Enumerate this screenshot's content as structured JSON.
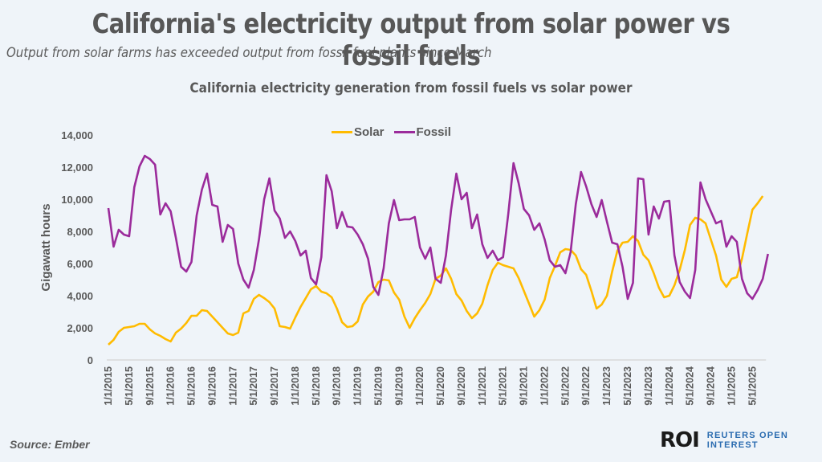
{
  "header": {
    "title": "California's electricity output from solar power vs fossil fuels",
    "subtitle": "Output from solar farms has exceeded output from fossil fuel plants since March"
  },
  "footer": {
    "source": "Source: Ember",
    "logo_mark": "ROI",
    "logo_line1": "REUTERS OPEN",
    "logo_line2": "INTEREST"
  },
  "colors": {
    "solar": "#ffbb00",
    "fossil": "#9b2b9b",
    "axis": "#d9d9d9",
    "text": "#595959"
  },
  "chart_data": {
    "type": "line",
    "title": "California electricity generation from fossil fuels vs solar power",
    "xlabel": "",
    "ylabel": "Gigawatt hours",
    "ylim": [
      0,
      14000
    ],
    "yticks": [
      0,
      2000,
      4000,
      6000,
      8000,
      10000,
      12000,
      14000
    ],
    "ytick_labels": [
      "0",
      "2,000",
      "4,000",
      "6,000",
      "8,000",
      "10,000",
      "12,000",
      "14,000"
    ],
    "xtick_labels": [
      "1/1/2015",
      "5/1/2015",
      "9/1/2015",
      "1/1/2016",
      "5/1/2016",
      "9/1/2016",
      "1/1/2017",
      "5/1/2017",
      "9/1/2017",
      "1/1/2018",
      "5/1/2018",
      "9/1/2018",
      "1/1/2019",
      "5/1/2019",
      "9/1/2019",
      "1/1/2020",
      "5/1/2020",
      "9/1/2020",
      "1/1/2021",
      "5/1/2021",
      "9/1/2021",
      "1/1/2022",
      "5/1/2022",
      "9/1/2022",
      "1/1/2023",
      "5/1/2023",
      "9/1/2023",
      "1/1/2024",
      "5/1/2024",
      "9/1/2024",
      "1/1/2025",
      "5/1/2025"
    ],
    "x_start": "2015-01",
    "x_frequency": "monthly",
    "legend": "top-center",
    "grid": false,
    "series": [
      {
        "name": "Solar",
        "values": [
          950,
          1250,
          1750,
          2000,
          2050,
          2100,
          2250,
          2250,
          1900,
          1650,
          1500,
          1300,
          1150,
          1700,
          1950,
          2300,
          2750,
          2750,
          3100,
          3050,
          2700,
          2350,
          2000,
          1650,
          1550,
          1700,
          2900,
          3050,
          3800,
          4050,
          3850,
          3600,
          3200,
          2100,
          2050,
          1950,
          2650,
          3300,
          3850,
          4400,
          4600,
          4250,
          4150,
          3900,
          3200,
          2350,
          2050,
          2100,
          2400,
          3450,
          3950,
          4250,
          4850,
          5000,
          4950,
          4200,
          3750,
          2700,
          2000,
          2600,
          3100,
          3550,
          4100,
          5050,
          5250,
          5700,
          5050,
          4100,
          3700,
          3050,
          2600,
          2900,
          3500,
          4650,
          5600,
          6050,
          5900,
          5800,
          5700,
          5100,
          4300,
          3500,
          2700,
          3100,
          3750,
          5100,
          5850,
          6700,
          6900,
          6850,
          6500,
          5650,
          5300,
          4300,
          3200,
          3450,
          4000,
          5500,
          6800,
          7300,
          7350,
          7700,
          7400,
          6550,
          6200,
          5400,
          4500,
          3900,
          4000,
          4650,
          5600,
          6850,
          8400,
          8850,
          8750,
          8500,
          7500,
          6500,
          5000,
          4550,
          5050,
          5150,
          6300,
          7850,
          9350,
          9750,
          10200
        ]
      },
      {
        "name": "Fossil",
        "values": [
          9450,
          7050,
          8100,
          7800,
          7700,
          10750,
          12050,
          12700,
          12500,
          12150,
          9050,
          9750,
          9250,
          7600,
          5800,
          5500,
          6100,
          9000,
          10600,
          11600,
          9650,
          9550,
          7350,
          8400,
          8150,
          6000,
          5000,
          4500,
          5600,
          7500,
          10000,
          11300,
          9300,
          8800,
          7600,
          8000,
          7400,
          6500,
          6800,
          5100,
          4700,
          6400,
          11500,
          10500,
          8200,
          9200,
          8300,
          8250,
          7800,
          7200,
          6300,
          4550,
          4050,
          5700,
          8500,
          9950,
          8700,
          8750,
          8750,
          8900,
          7000,
          6300,
          7000,
          5050,
          4800,
          6500,
          9350,
          11600,
          10000,
          10400,
          8200,
          9050,
          7200,
          6350,
          6800,
          6200,
          6400,
          9100,
          12250,
          11000,
          9400,
          9000,
          8100,
          8500,
          7500,
          6200,
          5800,
          5900,
          5400,
          6700,
          9700,
          11700,
          10800,
          9700,
          8900,
          9950,
          8600,
          7300,
          7200,
          5800,
          3800,
          4800,
          11300,
          11250,
          7800,
          9550,
          8800,
          9850,
          9900,
          6500,
          4850,
          4250,
          3850,
          5600,
          11050,
          10000,
          9250,
          8500,
          8650,
          7050,
          7700,
          7350,
          5050,
          4150,
          3800,
          4350,
          5050,
          6600
        ]
      }
    ]
  }
}
